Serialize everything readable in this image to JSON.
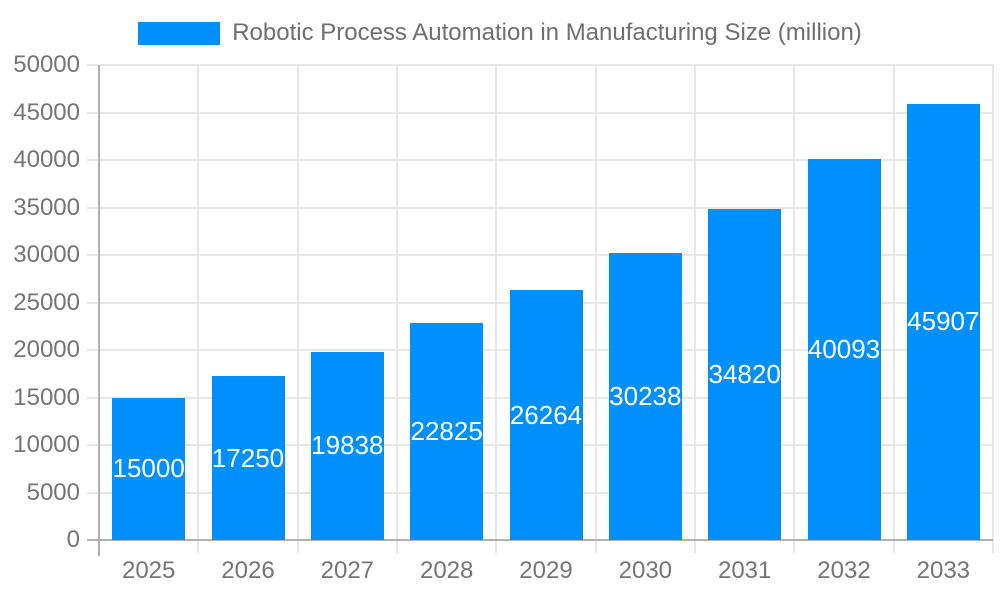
{
  "legend": {
    "label": "Robotic Process Automation in Manufacturing Size (million)"
  },
  "colors": {
    "bar": "#008FFB",
    "grid": "#e7e7e7",
    "axis_line": "#b1b1b1",
    "axis_text": "#757575",
    "legend_text": "#6f6f6f",
    "value_text": "#ffffff",
    "background": "#ffffff"
  },
  "chart_data": {
    "type": "bar",
    "title": "Robotic Process Automation in Manufacturing Size (million)",
    "series": [
      {
        "name": "Robotic Process Automation in Manufacturing Size (million)",
        "values": [
          15000,
          17250,
          19838,
          22825,
          26264,
          30238,
          34820,
          40093,
          45907
        ]
      }
    ],
    "categories": [
      "2025",
      "2026",
      "2027",
      "2028",
      "2029",
      "2030",
      "2031",
      "2032",
      "2033"
    ],
    "values": [
      15000,
      17250,
      19838,
      22825,
      26264,
      30238,
      34820,
      40093,
      45907
    ],
    "yticks": [
      0,
      5000,
      10000,
      15000,
      20000,
      25000,
      30000,
      35000,
      40000,
      45000,
      50000
    ],
    "xlabel": "",
    "ylabel": "",
    "ylim": [
      0,
      50000
    ],
    "grid": true,
    "legend_position": "top",
    "value_labels": "inside-center"
  }
}
